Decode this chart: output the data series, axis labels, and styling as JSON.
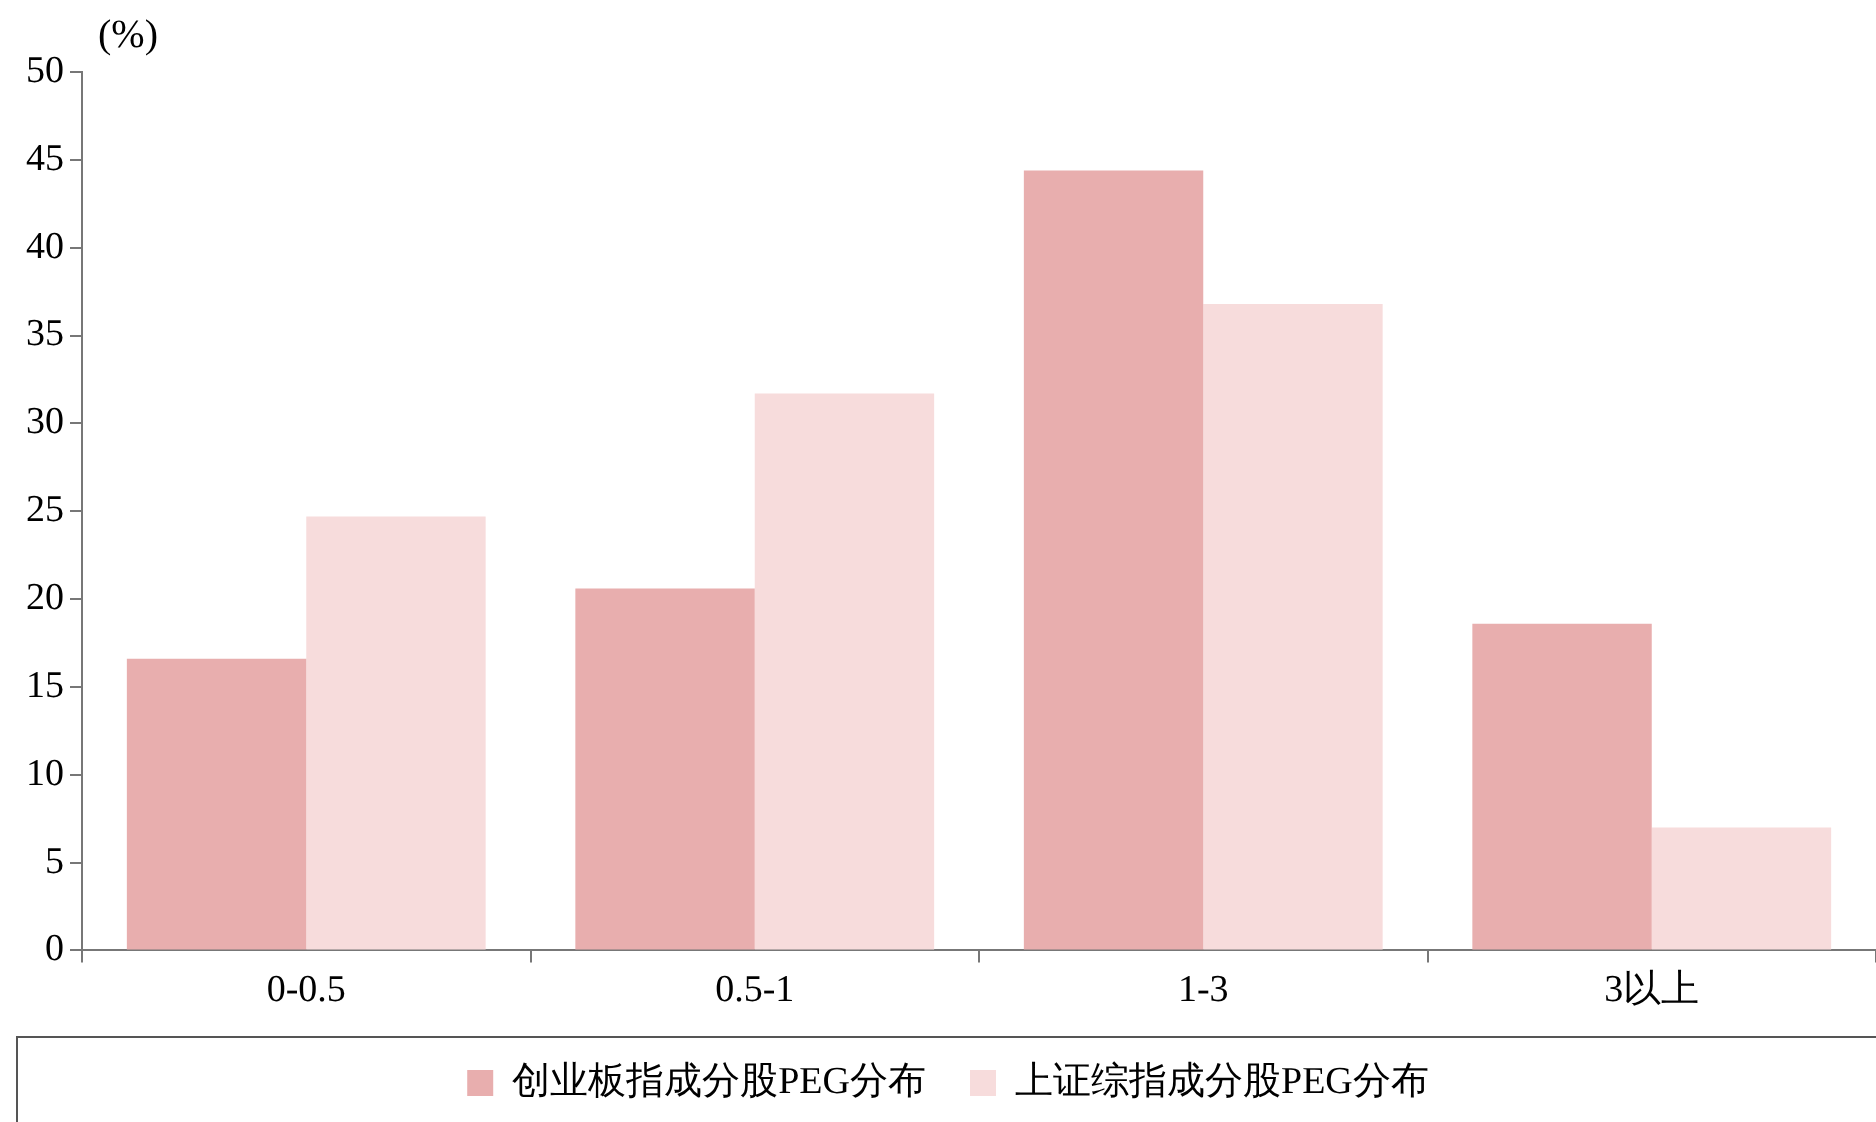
{
  "chart_data": {
    "type": "bar",
    "ylabel": "(%)",
    "categories": [
      "0-0.5",
      "0.5-1",
      "1-3",
      "3以上"
    ],
    "series": [
      {
        "name": "创业板指成分股PEG分布",
        "color": "#e8aeae",
        "values": [
          16.6,
          20.6,
          44.4,
          18.6
        ]
      },
      {
        "name": "上证综指成分股PEG分布",
        "color": "#f7dcdc",
        "values": [
          24.7,
          31.7,
          36.8,
          7.0
        ]
      }
    ],
    "ylim": [
      0,
      50
    ],
    "yticks": [
      0,
      5,
      10,
      15,
      20,
      25,
      30,
      35,
      40,
      45,
      50
    ],
    "grid": false,
    "legend": "bottom"
  }
}
